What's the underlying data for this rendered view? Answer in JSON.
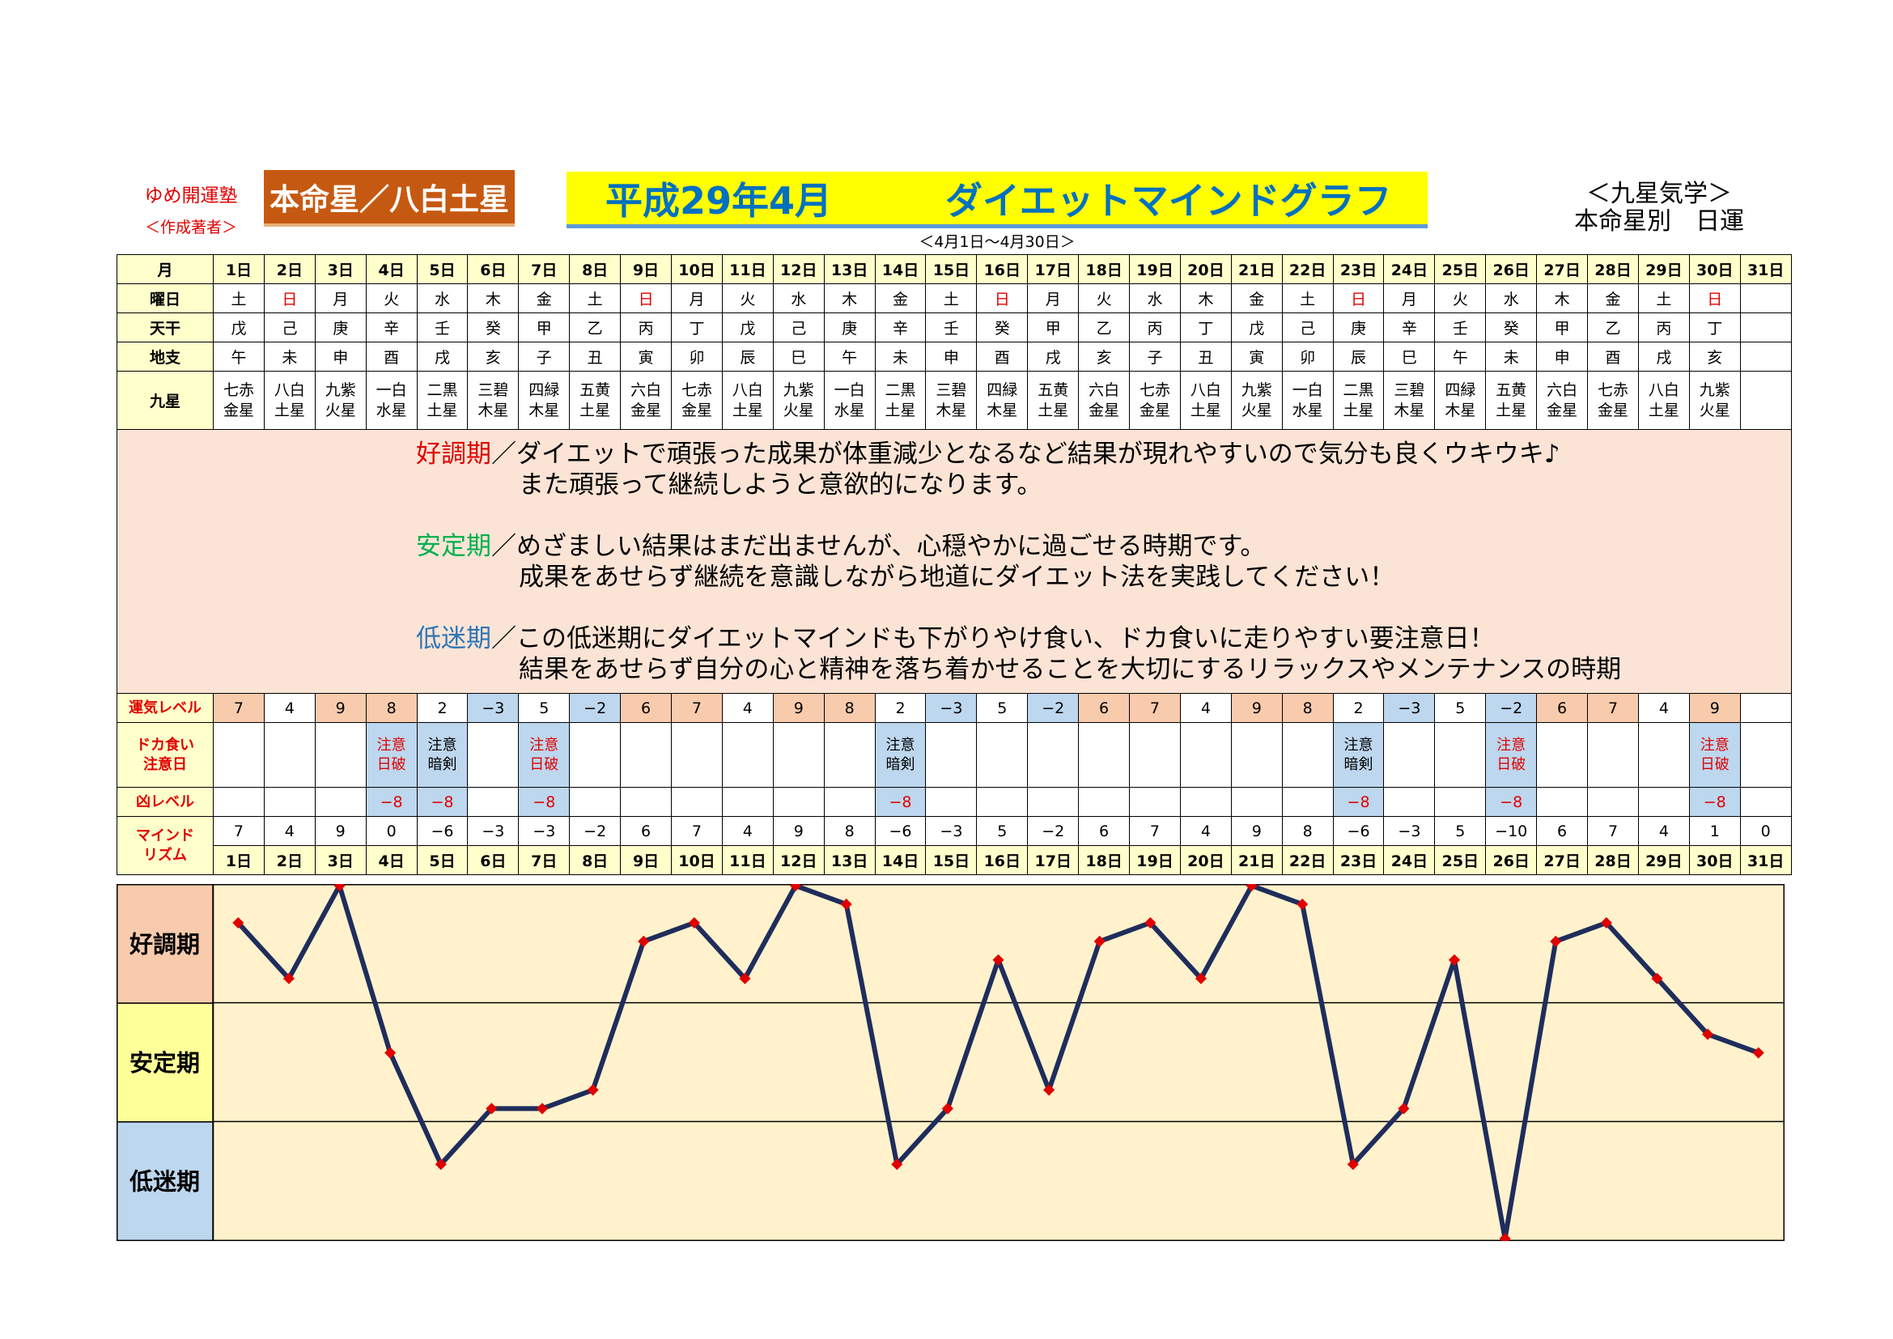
{
  "header": {
    "brand": "ゆめ開運塾",
    "author": "＜作成著者＞",
    "star_label": "本命星／八白土星",
    "title_left": "平成29年4月",
    "title_right": "ダイエットマインドグラフ",
    "period": "＜4月1日～4月30日＞",
    "kyusei": "＜九星気学＞",
    "subtitle": "本命星別　日運"
  },
  "table": {
    "labels": {
      "month": "月",
      "weekday": "曜日",
      "tenkan": "天干",
      "chishi": "地支",
      "kyusei": "九星",
      "luck_level": "運気レベル",
      "binge_line1": "ドカ食い",
      "binge_line2": "注意日",
      "bad_level": "凶レベル",
      "mind_line1": "マインド",
      "mind_line2": "リズム"
    },
    "days": [
      "1日",
      "2日",
      "3日",
      "4日",
      "5日",
      "6日",
      "7日",
      "8日",
      "9日",
      "10日",
      "11日",
      "12日",
      "13日",
      "14日",
      "15日",
      "16日",
      "17日",
      "18日",
      "19日",
      "20日",
      "21日",
      "22日",
      "23日",
      "24日",
      "25日",
      "26日",
      "27日",
      "28日",
      "29日",
      "30日",
      "31日"
    ],
    "weekdays": [
      "土",
      "日",
      "月",
      "火",
      "水",
      "木",
      "金",
      "土",
      "日",
      "月",
      "火",
      "水",
      "木",
      "金",
      "土",
      "日",
      "月",
      "火",
      "水",
      "木",
      "金",
      "土",
      "日",
      "月",
      "火",
      "水",
      "木",
      "金",
      "土",
      "日",
      ""
    ],
    "tenkan": [
      "戊",
      "己",
      "庚",
      "辛",
      "壬",
      "癸",
      "甲",
      "乙",
      "丙",
      "丁",
      "戊",
      "己",
      "庚",
      "辛",
      "壬",
      "癸",
      "甲",
      "乙",
      "丙",
      "丁",
      "戊",
      "己",
      "庚",
      "辛",
      "壬",
      "癸",
      "甲",
      "乙",
      "丙",
      "丁",
      ""
    ],
    "chishi": [
      "午",
      "未",
      "申",
      "酉",
      "戌",
      "亥",
      "子",
      "丑",
      "寅",
      "卯",
      "辰",
      "巳",
      "午",
      "未",
      "申",
      "酉",
      "戌",
      "亥",
      "子",
      "丑",
      "寅",
      "卯",
      "辰",
      "巳",
      "午",
      "未",
      "申",
      "酉",
      "戌",
      "亥",
      ""
    ],
    "kyusei_top": [
      "七赤",
      "八白",
      "九紫",
      "一白",
      "二黒",
      "三碧",
      "四緑",
      "五黄",
      "六白",
      "七赤",
      "八白",
      "九紫",
      "一白",
      "二黒",
      "三碧",
      "四緑",
      "五黄",
      "六白",
      "七赤",
      "八白",
      "九紫",
      "一白",
      "二黒",
      "三碧",
      "四緑",
      "五黄",
      "六白",
      "七赤",
      "八白",
      "九紫",
      ""
    ],
    "kyusei_bottom": [
      "金星",
      "土星",
      "火星",
      "水星",
      "土星",
      "木星",
      "木星",
      "土星",
      "金星",
      "金星",
      "土星",
      "火星",
      "水星",
      "土星",
      "木星",
      "木星",
      "土星",
      "金星",
      "金星",
      "土星",
      "火星",
      "水星",
      "土星",
      "木星",
      "木星",
      "土星",
      "金星",
      "金星",
      "土星",
      "火星",
      ""
    ],
    "luck_levels": [
      "7",
      "4",
      "9",
      "8",
      "2",
      "−3",
      "5",
      "−2",
      "6",
      "7",
      "4",
      "9",
      "8",
      "2",
      "−3",
      "5",
      "−2",
      "6",
      "7",
      "4",
      "9",
      "8",
      "2",
      "−3",
      "5",
      "−2",
      "6",
      "7",
      "4",
      "9",
      ""
    ],
    "caution_top": [
      "",
      "",
      "",
      "注意",
      "注意",
      "",
      "注意",
      "",
      "",
      "",
      "",
      "",
      "",
      "注意",
      "",
      "",
      "",
      "",
      "",
      "",
      "",
      "",
      "注意",
      "",
      "",
      "注意",
      "",
      "",
      "",
      "注意",
      ""
    ],
    "caution_bottom": [
      "",
      "",
      "",
      "日破",
      "暗剣",
      "",
      "日破",
      "",
      "",
      "",
      "",
      "",
      "",
      "暗剣",
      "",
      "",
      "",
      "",
      "",
      "",
      "",
      "",
      "暗剣",
      "",
      "",
      "日破",
      "",
      "",
      "",
      "日破",
      ""
    ],
    "bad_levels": [
      "",
      "",
      "",
      "−8",
      "−8",
      "",
      "−8",
      "",
      "",
      "",
      "",
      "",
      "",
      "−8",
      "",
      "",
      "",
      "",
      "",
      "",
      "",
      "",
      "−8",
      "",
      "",
      "−8",
      "",
      "",
      "",
      "−8",
      ""
    ],
    "mind_rhythm": [
      "7",
      "4",
      "9",
      "0",
      "−6",
      "−3",
      "−3",
      "−2",
      "6",
      "7",
      "4",
      "9",
      "8",
      "−6",
      "−3",
      "5",
      "−2",
      "6",
      "7",
      "4",
      "9",
      "8",
      "−6",
      "−3",
      "5",
      "−10",
      "6",
      "7",
      "4",
      "1",
      "0"
    ]
  },
  "description": {
    "good_phase": "好調期",
    "good_line1": "／ダイエットで頑張った成果が体重減少となるなど結果が現れやすいので気分も良くウキウキ♪",
    "good_line2": "また頑張って継続しようと意欲的になります。",
    "stable_phase": "安定期",
    "stable_line1": "／めざましい結果はまだ出ませんが、心穏やかに過ごせる時期です。",
    "stable_line2": "成果をあせらず継続を意識しながら地道にダイエット法を実践してください！",
    "low_phase": "低迷期",
    "low_line1": "／この低迷期にダイエットマインドも下がりやけ食い、ドカ食いに走りやすい要注意日！",
    "low_line2": "結果をあせらず自分の心と精神を落ち着かせることを大切にするリラックスやメンテナンスの時期"
  },
  "chart_data": {
    "type": "line",
    "x": [
      1,
      2,
      3,
      4,
      5,
      6,
      7,
      8,
      9,
      10,
      11,
      12,
      13,
      14,
      15,
      16,
      17,
      18,
      19,
      20,
      21,
      22,
      23,
      24,
      25,
      26,
      27,
      28,
      29,
      30,
      31
    ],
    "series": [
      {
        "values": [
          7,
          4,
          9,
          0,
          -6,
          -3,
          -3,
          -2,
          6,
          7,
          4,
          9,
          8,
          -6,
          -3,
          5,
          -2,
          6,
          7,
          4,
          9,
          8,
          -6,
          -3,
          5,
          -10,
          6,
          7,
          4,
          1,
          0
        ]
      }
    ],
    "bands": [
      "好調期",
      "安定期",
      "低迷期"
    ],
    "ylim": [
      -10,
      9
    ],
    "line_color": "#1f2d5c",
    "marker_color": "#e00000",
    "band_colors": [
      "#f8cbad",
      "#ffff99",
      "#bdd7ee"
    ],
    "plot_background": "#fff2cc"
  }
}
